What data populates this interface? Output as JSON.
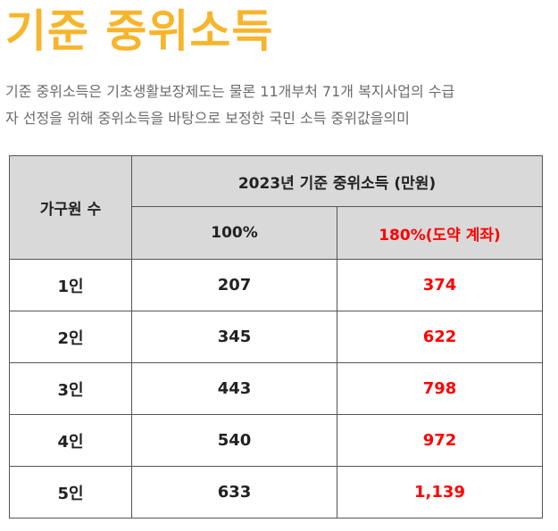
{
  "title": "기준 중위소득",
  "description": {
    "line1": "기준 중위소득은 기초생활보장제도는 물론 11개부처 71개 복지사업의 수급",
    "line2": "자 선정을 위해 중위소득을 바탕으로 보정한 국민 소득 중위값을의미"
  },
  "table": {
    "header_household": "가구원 수",
    "header_group": "2023년 기준 중위소득 (만원)",
    "header_100": "100%",
    "header_180": "180%(도약 계좌)",
    "rows": [
      {
        "household": "1인",
        "p100": "207",
        "p180": "374"
      },
      {
        "household": "2인",
        "p100": "345",
        "p180": "622"
      },
      {
        "household": "3인",
        "p100": "443",
        "p180": "798"
      },
      {
        "household": "4인",
        "p100": "540",
        "p180": "972"
      },
      {
        "household": "5인",
        "p100": "633",
        "p180": "1,139"
      }
    ]
  },
  "colors": {
    "title": "#f7b52c",
    "header_bg": "#d9d9d9",
    "highlight": "#ff0000"
  }
}
